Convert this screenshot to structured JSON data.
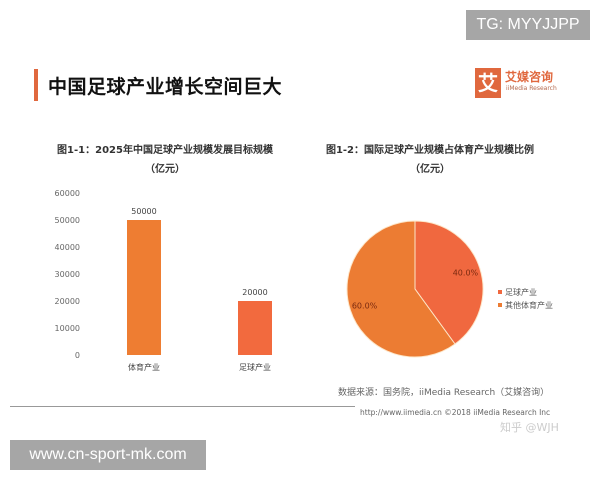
{
  "watermark_top": "TG: MYYJJPP",
  "watermark_bottom": "www.cn-sport-mk.com",
  "page_title": "中国足球产业增长空间巨大",
  "logo": {
    "mark": "艾",
    "name_cn": "艾媒咨询",
    "name_en": "iiMedia Research"
  },
  "source": "数据来源：国务院，iiMedia Research（艾媒咨询）",
  "footer": "http://www.iimedia.cn    ©2018 iiMedia Research Inc",
  "zhihu_watermark": "知乎 @WJH",
  "accent_color": "#e0683e",
  "chart_data": [
    {
      "type": "bar",
      "title": "图1-1：2025年中国足球产业规模发展目标规模",
      "subtitle": "（亿元）",
      "categories": [
        "体育产业",
        "足球产业"
      ],
      "values": [
        50000,
        20000
      ],
      "data_labels": [
        "50000",
        "20000"
      ],
      "colors": [
        "#ee7d32",
        "#f26a3e"
      ],
      "ylim": [
        0,
        60000
      ],
      "yticks": [
        "0",
        "10000",
        "20000",
        "30000",
        "40000",
        "50000",
        "60000"
      ],
      "grid": false
    },
    {
      "type": "pie",
      "title": "图1-2：国际足球产业规模占体育产业规模比例",
      "subtitle": "（亿元）",
      "slices": [
        {
          "name": "足球产业",
          "value": 40.0,
          "label": "40.0%",
          "color": "#f0683f"
        },
        {
          "name": "其他体育产业",
          "value": 60.0,
          "label": "60.0%",
          "color": "#ec7c33"
        }
      ],
      "legend": "right"
    }
  ]
}
